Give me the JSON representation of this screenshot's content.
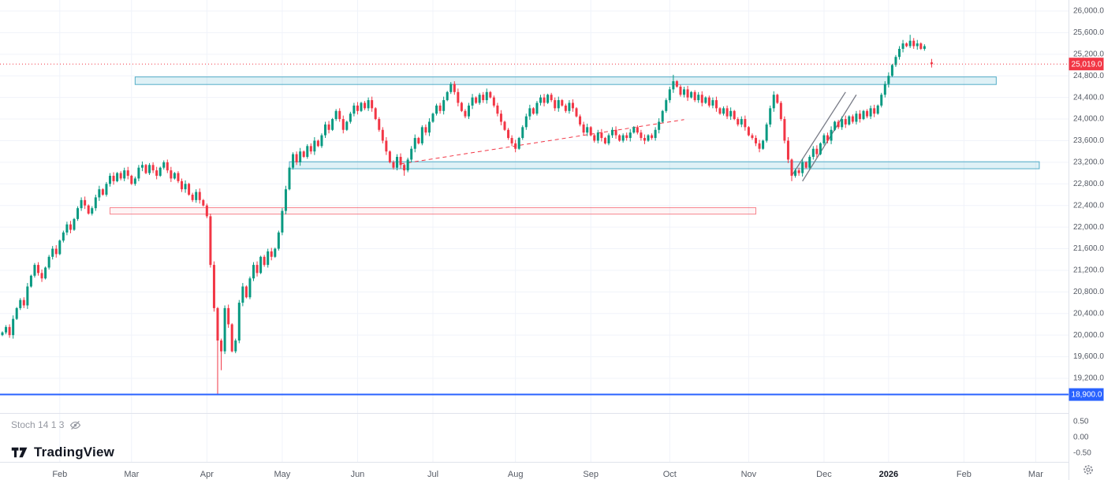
{
  "branding": {
    "logo_text": "TradingView"
  },
  "chart_data": {
    "type": "candlestick",
    "title": "",
    "grid": true,
    "legend_position": "none",
    "ylim": [
      18800,
      26100
    ],
    "last_price": 25019.0,
    "last_price_label": "25,019.0",
    "first_open": 20000,
    "y_axis": [
      {
        "value": 26000,
        "label": "26,000.0"
      },
      {
        "value": 25600,
        "label": "25,600.0"
      },
      {
        "value": 25200,
        "label": "25,200.0"
      },
      {
        "value": 24800,
        "label": "24,800.0"
      },
      {
        "value": 24400,
        "label": "24,400.0"
      },
      {
        "value": 24000,
        "label": "24,000.0"
      },
      {
        "value": 23600,
        "label": "23,600.0"
      },
      {
        "value": 23200,
        "label": "23,200.0"
      },
      {
        "value": 22800,
        "label": "22,800.0"
      },
      {
        "value": 22400,
        "label": "22,400.0"
      },
      {
        "value": 22000,
        "label": "22,000.0"
      },
      {
        "value": 21600,
        "label": "21,600.0"
      },
      {
        "value": 21200,
        "label": "21,200.0"
      },
      {
        "value": 20800,
        "label": "20,800.0"
      },
      {
        "value": 20400,
        "label": "20,400.0"
      },
      {
        "value": 20000,
        "label": "20,000.0"
      },
      {
        "value": 19600,
        "label": "19,600.0"
      },
      {
        "value": 19200,
        "label": "19,200.0"
      }
    ],
    "x_labels": [
      {
        "label": "Feb",
        "index": 16
      },
      {
        "label": "Mar",
        "index": 36
      },
      {
        "label": "Apr",
        "index": 57
      },
      {
        "label": "May",
        "index": 78
      },
      {
        "label": "Jun",
        "index": 99
      },
      {
        "label": "Jul",
        "index": 120
      },
      {
        "label": "Aug",
        "index": 143
      },
      {
        "label": "Sep",
        "index": 164
      },
      {
        "label": "Oct",
        "index": 186
      },
      {
        "label": "Nov",
        "index": 208
      },
      {
        "label": "Dec",
        "index": 229
      },
      {
        "label": "2026",
        "index": 247,
        "emphasis": true
      },
      {
        "label": "Feb",
        "index": 268
      },
      {
        "label": "Mar",
        "index": 288
      }
    ],
    "closes": [
      20050,
      20150,
      20000,
      20300,
      20500,
      20650,
      20550,
      20900,
      21100,
      21300,
      21150,
      21050,
      21250,
      21450,
      21600,
      21500,
      21750,
      21900,
      22050,
      21950,
      22150,
      22350,
      22500,
      22400,
      22250,
      22350,
      22550,
      22700,
      22600,
      22800,
      22950,
      22850,
      23000,
      22900,
      23050,
      22950,
      22800,
      22900,
      23100,
      23150,
      23000,
      23150,
      23050,
      22950,
      23100,
      23200,
      23050,
      22900,
      23000,
      22850,
      22700,
      22800,
      22600,
      22500,
      22650,
      22500,
      22400,
      22200,
      21300,
      20500,
      19900,
      19700,
      20500,
      20200,
      19700,
      19900,
      20600,
      20900,
      20700,
      21050,
      21300,
      21150,
      21450,
      21300,
      21550,
      21450,
      21600,
      21900,
      22300,
      22700,
      23100,
      23350,
      23200,
      23400,
      23300,
      23500,
      23400,
      23600,
      23500,
      23700,
      23900,
      23800,
      24000,
      24150,
      24000,
      23800,
      23950,
      24100,
      24250,
      24150,
      24300,
      24200,
      24350,
      24200,
      24000,
      23800,
      23600,
      23400,
      23200,
      23100,
      23300,
      23150,
      23050,
      23250,
      23450,
      23650,
      23550,
      23850,
      23750,
      23950,
      24100,
      24250,
      24150,
      24350,
      24500,
      24650,
      24500,
      24300,
      24150,
      24050,
      24250,
      24400,
      24300,
      24450,
      24350,
      24500,
      24400,
      24250,
      24100,
      23950,
      23800,
      23650,
      23550,
      23450,
      23650,
      23850,
      24050,
      24200,
      24100,
      24300,
      24400,
      24300,
      24450,
      24350,
      24200,
      24350,
      24250,
      24150,
      24300,
      24200,
      24050,
      23900,
      23750,
      23850,
      23700,
      23600,
      23750,
      23650,
      23550,
      23700,
      23800,
      23700,
      23600,
      23700,
      23650,
      23750,
      23850,
      23750,
      23650,
      23600,
      23700,
      23650,
      23800,
      23950,
      24150,
      24350,
      24550,
      24700,
      24600,
      24450,
      24550,
      24400,
      24500,
      24350,
      24450,
      24300,
      24400,
      24250,
      24350,
      24200,
      24100,
      24200,
      24050,
      24150,
      24000,
      23900,
      24000,
      23850,
      23700,
      23650,
      23550,
      23450,
      23600,
      23900,
      24200,
      24450,
      24300,
      24000,
      23600,
      23250,
      22950,
      23050,
      23000,
      23200,
      23100,
      23300,
      23450,
      23350,
      23550,
      23700,
      23600,
      23800,
      23950,
      23850,
      24000,
      23900,
      24050,
      23950,
      24100,
      24000,
      24150,
      24050,
      24200,
      24100,
      24250,
      24450,
      24650,
      24800,
      25000,
      25150,
      25300,
      25400,
      25350,
      25450,
      25350,
      25400,
      25300,
      25350,
      null,
      25019
    ],
    "special_wicks": [
      {
        "index": 60,
        "low": 18900
      },
      {
        "index": 61,
        "low": 19350
      },
      {
        "index": 112,
        "low": 22950
      },
      {
        "index": 187,
        "high": 24820
      },
      {
        "index": 220,
        "low": 22850
      },
      {
        "index": 253,
        "high": 25560
      }
    ],
    "zones": [
      {
        "name": "upper-resistance-zone",
        "from_index": 37,
        "to_index": 277,
        "top": 24780,
        "bottom": 24640
      },
      {
        "name": "lower-support-zone",
        "from_index": 80,
        "to_index": 289,
        "top": 23210,
        "bottom": 23080
      }
    ],
    "red_zone": {
      "from_index": 30,
      "to_index": 210,
      "top": 22360,
      "bottom": 22240
    },
    "trendline": {
      "x1_index": 111,
      "y1": 23170,
      "x2_index": 190,
      "y2": 23990,
      "style": "dashed"
    },
    "channel_lines": [
      {
        "x1_index": 220,
        "y1": 22950,
        "x2_index": 235,
        "y2": 24500
      },
      {
        "x1_index": 223,
        "y1": 22850,
        "x2_index": 238,
        "y2": 24450
      }
    ],
    "horizontal_line": {
      "price": 18900,
      "label": "18,900.0"
    },
    "stoch": {
      "label": "Stoch 14 1 3",
      "ticks": [
        {
          "value": 0.5,
          "label": "0.50"
        },
        {
          "value": 0.0,
          "label": "0.00"
        },
        {
          "value": -0.5,
          "label": "-0.50"
        }
      ]
    }
  },
  "colors": {
    "up": "#089981",
    "down": "#f23645",
    "grid": "#f0f3fa",
    "separator": "#e0e3eb",
    "axis_text": "#555a64",
    "text_dark": "#131722",
    "muted": "#787b86",
    "zone_fill": "rgba(80,180,205,0.18)",
    "zone_border": "rgba(56,160,190,0.85)",
    "red_zone_fill": "rgba(242,54,69,0.05)",
    "red_zone_border": "rgba(242,54,69,0.6)",
    "blue_line": "#2962ff",
    "last_price_line": "#f23645"
  }
}
